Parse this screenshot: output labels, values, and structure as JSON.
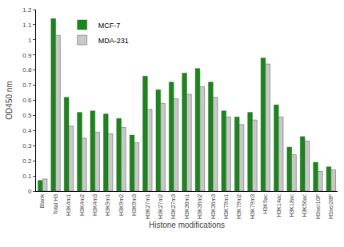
{
  "chart_data": {
    "type": "bar",
    "xlabel": "Histone modifications",
    "ylabel": "OD450 nm",
    "categories": [
      "Blank",
      "Total H3",
      "H3K4m1",
      "H3K4m2",
      "H3K4m3",
      "H3K9m1",
      "H3K9m2",
      "H3K9m3",
      "H3K27m1",
      "H3K27m2",
      "H3K27m3",
      "H3K36m1",
      "H3K36m2",
      "H3K36m3",
      "H3K79m1",
      "H3K79m2",
      "H3K79m3",
      "H3K9ac",
      "H3K14ac",
      "H3K18ac",
      "H3K56ac",
      "H3ser10P",
      "H3ser28P"
    ],
    "series": [
      {
        "name": "MCF-7",
        "color": "#138a13",
        "values": [
          0.07,
          1.14,
          0.62,
          0.52,
          0.53,
          0.51,
          0.48,
          0.37,
          0.76,
          0.67,
          0.72,
          0.78,
          0.81,
          0.72,
          0.53,
          0.49,
          0.52,
          0.88,
          0.57,
          0.29,
          0.36,
          0.19,
          0.16
        ]
      },
      {
        "name": "MDA-231",
        "color": "#c8c8c8",
        "values": [
          0.08,
          1.03,
          0.43,
          0.35,
          0.39,
          0.38,
          0.42,
          0.32,
          0.54,
          0.58,
          0.61,
          0.64,
          0.69,
          0.62,
          0.49,
          0.44,
          0.47,
          0.84,
          0.49,
          0.24,
          0.33,
          0.13,
          0.14
        ]
      }
    ],
    "ylim": [
      0,
      1.2
    ],
    "yticks": [
      0,
      0.1,
      0.2,
      0.3,
      0.4,
      0.5,
      0.6,
      0.7,
      0.8,
      0.9,
      1,
      1.1,
      1.2
    ],
    "grid": false,
    "legend": "upper left"
  }
}
